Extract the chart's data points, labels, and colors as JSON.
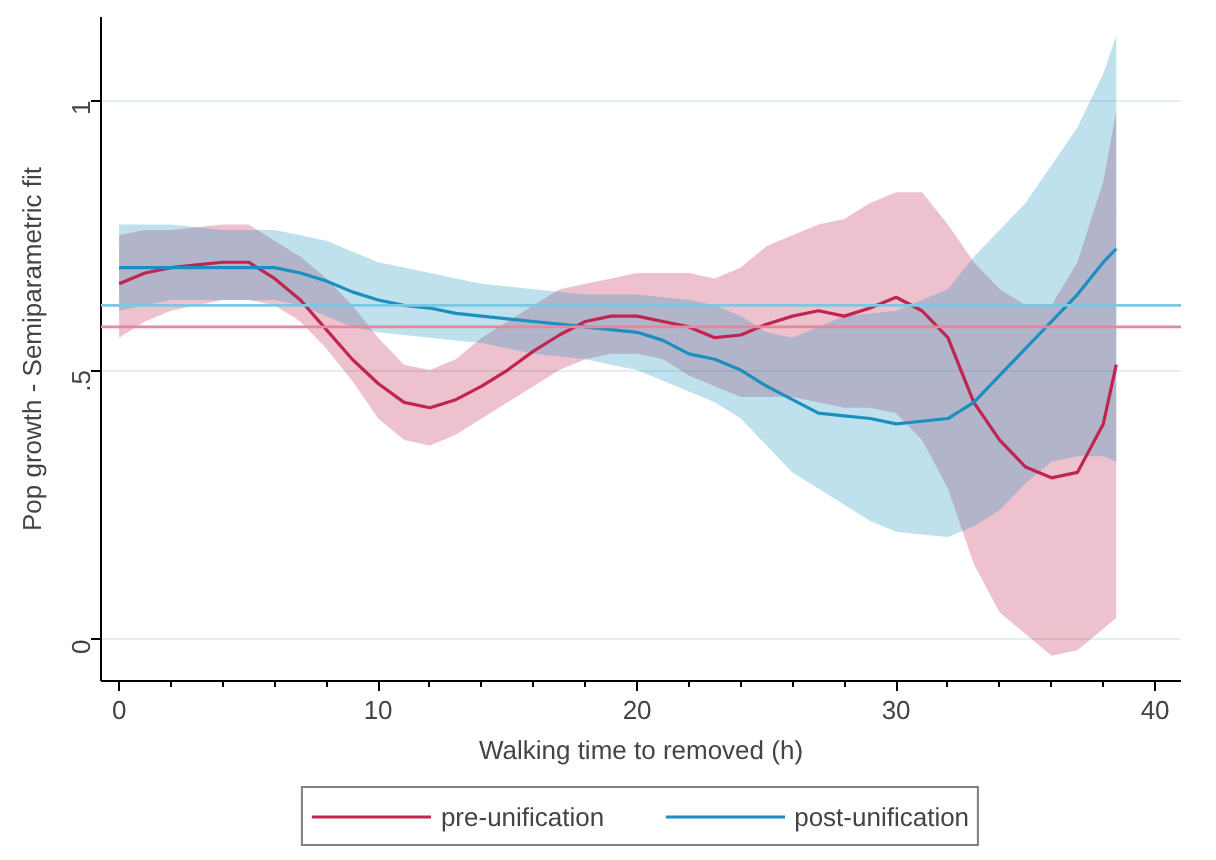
{
  "chart_data": {
    "type": "line",
    "xlabel": "Walking time to removed (h)",
    "ylabel": "Pop growth - Semiparametric fit",
    "xlim": [
      -0.7,
      41
    ],
    "ylim": [
      -0.077,
      1.155
    ],
    "xticks": [
      0,
      10,
      20,
      30,
      40
    ],
    "yticks": [
      0,
      {
        "value": 0.5,
        "label": ".5"
      },
      1
    ],
    "grid": "y",
    "legend": "bottom",
    "line_style": "solid",
    "marker": "none",
    "series": [
      {
        "name": "pre-unification",
        "color": "#c0254f",
        "x": [
          0,
          1,
          2,
          3,
          4,
          5,
          6,
          7,
          8,
          9,
          10,
          11,
          12,
          13,
          14,
          15,
          16,
          17,
          18,
          19,
          20,
          21,
          22,
          23,
          24,
          25,
          26,
          27,
          28,
          29,
          30,
          31,
          32,
          33,
          34,
          35,
          36,
          37,
          38,
          38.5
        ],
        "values": [
          0.66,
          0.68,
          0.69,
          0.695,
          0.7,
          0.7,
          0.67,
          0.63,
          0.575,
          0.52,
          0.475,
          0.44,
          0.43,
          0.445,
          0.47,
          0.5,
          0.535,
          0.565,
          0.59,
          0.6,
          0.6,
          0.59,
          0.58,
          0.56,
          0.565,
          0.585,
          0.6,
          0.61,
          0.6,
          0.615,
          0.635,
          0.61,
          0.56,
          0.44,
          0.37,
          0.32,
          0.3,
          0.31,
          0.4,
          0.51
        ],
        "lower": [
          0.56,
          0.59,
          0.61,
          0.62,
          0.63,
          0.63,
          0.62,
          0.59,
          0.54,
          0.48,
          0.41,
          0.37,
          0.36,
          0.38,
          0.41,
          0.44,
          0.47,
          0.5,
          0.52,
          0.53,
          0.53,
          0.52,
          0.49,
          0.47,
          0.45,
          0.45,
          0.45,
          0.44,
          0.43,
          0.43,
          0.42,
          0.37,
          0.28,
          0.14,
          0.05,
          0.01,
          -0.03,
          -0.02,
          0.02,
          0.04
        ],
        "upper": [
          0.75,
          0.76,
          0.76,
          0.765,
          0.77,
          0.77,
          0.74,
          0.71,
          0.67,
          0.62,
          0.56,
          0.51,
          0.5,
          0.52,
          0.56,
          0.59,
          0.62,
          0.65,
          0.66,
          0.67,
          0.68,
          0.68,
          0.68,
          0.67,
          0.69,
          0.73,
          0.75,
          0.77,
          0.78,
          0.81,
          0.83,
          0.83,
          0.77,
          0.7,
          0.65,
          0.62,
          0.62,
          0.7,
          0.85,
          0.98
        ]
      },
      {
        "name": "post-unification",
        "color": "#1a8fc0",
        "x": [
          0,
          1,
          2,
          3,
          4,
          5,
          6,
          7,
          8,
          9,
          10,
          11,
          12,
          13,
          14,
          15,
          16,
          17,
          18,
          19,
          20,
          21,
          22,
          23,
          24,
          25,
          26,
          27,
          28,
          29,
          30,
          31,
          32,
          33,
          34,
          35,
          36,
          37,
          38,
          38.5
        ],
        "values": [
          0.69,
          0.69,
          0.69,
          0.69,
          0.69,
          0.69,
          0.69,
          0.68,
          0.665,
          0.645,
          0.63,
          0.62,
          0.615,
          0.605,
          0.6,
          0.595,
          0.59,
          0.585,
          0.58,
          0.575,
          0.57,
          0.555,
          0.53,
          0.52,
          0.5,
          0.47,
          0.445,
          0.42,
          0.415,
          0.41,
          0.4,
          0.405,
          0.41,
          0.44,
          0.49,
          0.54,
          0.59,
          0.64,
          0.7,
          0.725
        ],
        "lower": [
          0.61,
          0.62,
          0.63,
          0.63,
          0.63,
          0.63,
          0.63,
          0.62,
          0.6,
          0.58,
          0.57,
          0.565,
          0.56,
          0.555,
          0.55,
          0.54,
          0.53,
          0.525,
          0.52,
          0.51,
          0.5,
          0.48,
          0.46,
          0.44,
          0.41,
          0.36,
          0.31,
          0.28,
          0.25,
          0.22,
          0.2,
          0.195,
          0.19,
          0.21,
          0.24,
          0.29,
          0.33,
          0.34,
          0.34,
          0.33
        ],
        "upper": [
          0.77,
          0.77,
          0.77,
          0.765,
          0.76,
          0.76,
          0.76,
          0.75,
          0.74,
          0.72,
          0.7,
          0.69,
          0.68,
          0.67,
          0.66,
          0.655,
          0.65,
          0.645,
          0.64,
          0.64,
          0.64,
          0.635,
          0.63,
          0.62,
          0.6,
          0.57,
          0.56,
          0.58,
          0.6,
          0.605,
          0.61,
          0.63,
          0.65,
          0.71,
          0.76,
          0.81,
          0.88,
          0.95,
          1.05,
          1.12
        ]
      }
    ],
    "ref_lines": [
      {
        "axis": "y",
        "value": 0.62,
        "color": "#7cc8e0"
      },
      {
        "axis": "y",
        "value": 0.58,
        "color": "#e8879b"
      }
    ]
  }
}
